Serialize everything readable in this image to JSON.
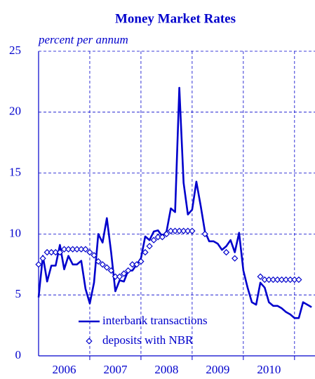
{
  "chart_data": {
    "type": "line",
    "title": "Money Market Rates",
    "subtitle": "percent per annum",
    "x": [
      2006,
      2006.083,
      2006.167,
      2006.25,
      2006.333,
      2006.417,
      2006.5,
      2006.583,
      2006.667,
      2006.75,
      2006.833,
      2006.917,
      2007,
      2007.083,
      2007.167,
      2007.25,
      2007.333,
      2007.417,
      2007.5,
      2007.583,
      2007.667,
      2007.75,
      2007.833,
      2007.917,
      2008,
      2008.083,
      2008.167,
      2008.25,
      2008.333,
      2008.417,
      2008.5,
      2008.583,
      2008.667,
      2008.75,
      2008.833,
      2008.917,
      2009,
      2009.083,
      2009.167,
      2009.25,
      2009.333,
      2009.417,
      2009.5,
      2009.583,
      2009.667,
      2009.75,
      2009.833,
      2009.917,
      2010,
      2010.083,
      2010.167,
      2010.25,
      2010.333,
      2010.417,
      2010.5,
      2010.583,
      2010.667,
      2010.75,
      2010.833,
      2010.917,
      2011,
      2011.083,
      2011.167,
      2011.25,
      2011.333
    ],
    "series": [
      {
        "name": "interbank transactions",
        "color": "#0000cc",
        "marker": "line",
        "values": [
          4.8,
          8.2,
          6.1,
          7.4,
          7.4,
          9.1,
          7.1,
          8.2,
          7.5,
          7.5,
          7.8,
          5.5,
          4.3,
          6.0,
          10.0,
          9.3,
          11.3,
          8.5,
          5.3,
          6.2,
          6.1,
          7.0,
          7.0,
          7.5,
          8.0,
          9.8,
          9.5,
          10.2,
          10.3,
          9.8,
          10.2,
          12.1,
          11.8,
          22.0,
          14.2,
          11.6,
          12.0,
          14.3,
          12.3,
          10.2,
          9.4,
          9.4,
          9.2,
          8.7,
          9.0,
          9.5,
          8.5,
          10.1,
          7.0,
          5.6,
          4.4,
          4.2,
          6.0,
          5.6,
          4.4,
          4.1,
          4.1,
          3.9,
          3.6,
          3.4,
          3.1,
          3.1,
          4.4,
          4.2,
          4.0
        ]
      },
      {
        "name": "deposits with NBR",
        "color": "#0000cc",
        "marker": "diamond",
        "values": [
          7.5,
          8.0,
          8.5,
          8.5,
          8.5,
          8.5,
          8.75,
          8.75,
          8.75,
          8.75,
          8.75,
          8.75,
          8.5,
          8.25,
          7.75,
          7.5,
          7.25,
          7.0,
          6.5,
          6.5,
          6.75,
          7.0,
          7.5,
          7.5,
          7.75,
          8.5,
          9.0,
          9.5,
          9.75,
          9.75,
          10.0,
          10.25,
          10.25,
          10.25,
          10.25,
          10.25,
          10.25,
          null,
          null,
          10.0,
          null,
          null,
          null,
          null,
          8.5,
          null,
          8.0,
          null,
          null,
          null,
          null,
          null,
          6.5,
          6.25,
          6.25,
          6.25,
          6.25,
          6.25,
          6.25,
          6.25,
          6.25,
          6.25,
          null,
          null,
          null
        ]
      }
    ],
    "xlim": [
      2006,
      2011.4
    ],
    "xticks": [
      {
        "value": 2006.5,
        "label": "2006"
      },
      {
        "value": 2007.5,
        "label": "2007"
      },
      {
        "value": 2008.5,
        "label": "2008"
      },
      {
        "value": 2009.5,
        "label": "2009"
      },
      {
        "value": 2010.5,
        "label": "2010"
      }
    ],
    "ylim": [
      0,
      25
    ],
    "yticks": [
      0,
      5,
      10,
      15,
      20,
      25
    ],
    "grid": true,
    "legend": "lower left"
  }
}
